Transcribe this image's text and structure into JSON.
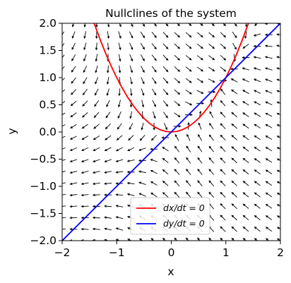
{
  "chart_data": {
    "type": "line",
    "title": "Nullclines of the system",
    "xlabel": "x",
    "ylabel": "y",
    "xlim": [
      -2,
      2
    ],
    "ylim": [
      -2,
      2
    ],
    "xticks": [
      -2,
      -1,
      0,
      1,
      2
    ],
    "yticks": [
      -2.0,
      -1.5,
      -1.0,
      -0.5,
      0.0,
      0.5,
      1.0,
      1.5,
      2.0
    ],
    "xtick_labels": [
      "−2",
      "−1",
      "0",
      "1",
      "2"
    ],
    "ytick_labels": [
      "−2.0",
      "−1.5",
      "−1.0",
      "−0.5",
      "0.0",
      "0.5",
      "1.0",
      "1.5",
      "2.0"
    ],
    "grid": false,
    "legend_position": "lower-center",
    "series": [
      {
        "name": "dx/dt = 0",
        "color": "#ff0000",
        "x": [
          -1.414,
          -1.3,
          -1.2,
          -1.1,
          -1.0,
          -0.9,
          -0.8,
          -0.7,
          -0.6,
          -0.5,
          -0.4,
          -0.3,
          -0.2,
          -0.1,
          0.0,
          0.1,
          0.2,
          0.3,
          0.4,
          0.5,
          0.6,
          0.7,
          0.8,
          0.9,
          1.0,
          1.1,
          1.2,
          1.3,
          1.414
        ],
        "y": [
          2.0,
          1.69,
          1.44,
          1.21,
          1.0,
          0.81,
          0.64,
          0.49,
          0.36,
          0.25,
          0.16,
          0.09,
          0.04,
          0.01,
          0.0,
          0.01,
          0.04,
          0.09,
          0.16,
          0.25,
          0.36,
          0.49,
          0.64,
          0.81,
          1.0,
          1.21,
          1.44,
          1.69,
          2.0
        ]
      },
      {
        "name": "dy/dt = 0",
        "color": "#0000ff",
        "x": [
          -2,
          -1,
          0,
          1,
          2
        ],
        "y": [
          -2,
          -1,
          0,
          1,
          2
        ]
      }
    ],
    "vector_field": {
      "x_min": -2,
      "x_max": 2,
      "y_min": -2,
      "y_max": 2,
      "n": 20,
      "u": "y - x^2",
      "v": "x - y",
      "color": "#000000"
    }
  }
}
